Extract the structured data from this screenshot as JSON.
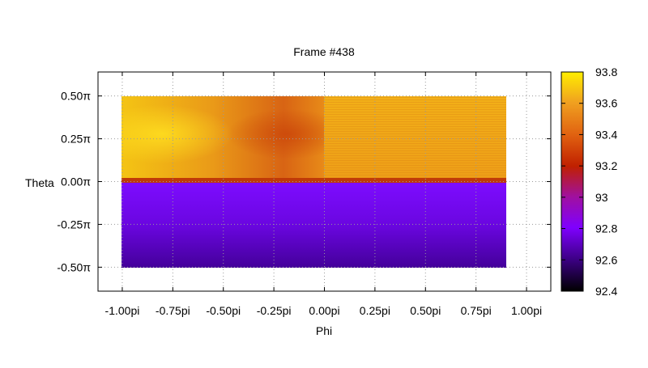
{
  "chart_data": {
    "type": "heatmap",
    "title": "Frame #438",
    "xlabel": "Phi",
    "ylabel": "Theta",
    "x_ticks": [
      "-1.00pi",
      "-0.75pi",
      "-0.50pi",
      "-0.25pi",
      "0.00pi",
      "0.25pi",
      "0.50pi",
      "0.75pi",
      "1.00pi"
    ],
    "x_tick_values": [
      -1.0,
      -0.75,
      -0.5,
      -0.25,
      0.0,
      0.25,
      0.5,
      0.75,
      1.0
    ],
    "y_ticks": [
      "0.50π",
      "0.25π",
      "0.00π",
      "-0.25π",
      "-0.50π"
    ],
    "y_tick_values": [
      0.5,
      0.25,
      0.0,
      -0.25,
      -0.5
    ],
    "xlim": [
      -1.12,
      1.12
    ],
    "ylim": [
      -0.64,
      0.64
    ],
    "grid": true,
    "data_extent": {
      "x": [
        -1.0,
        0.9
      ],
      "y": [
        -0.5,
        0.5
      ]
    },
    "colorbar": {
      "range": [
        92.4,
        93.8
      ],
      "ticks": [
        "93.8",
        "93.6",
        "93.4",
        "93.2",
        "93",
        "92.8",
        "92.6",
        "92.4"
      ],
      "tick_values": [
        93.8,
        93.6,
        93.4,
        93.2,
        93.0,
        92.8,
        92.6,
        92.4
      ],
      "palette": "black-purple-red-orange-yellow"
    },
    "regions": [
      {
        "phi": [
          -1.0,
          0.0
        ],
        "theta": [
          0.0,
          0.5
        ],
        "value_range": [
          93.4,
          93.7
        ],
        "note": "peak near phi -0.85pi, theta 0.3pi; lower near phi -0.1pi"
      },
      {
        "phi": [
          0.0,
          0.9
        ],
        "theta": [
          0.0,
          0.5
        ],
        "value_range": [
          93.5,
          93.6
        ]
      },
      {
        "phi": [
          -1.0,
          0.9
        ],
        "theta": [
          -0.5,
          0.0
        ],
        "value_range": [
          92.6,
          92.85
        ],
        "note": "decreasing toward theta -0.5pi"
      },
      {
        "phi": [
          -1.0,
          0.9
        ],
        "theta": [
          -0.01,
          0.02
        ],
        "value_range": [
          93.2,
          93.3
        ],
        "note": "boundary band"
      }
    ]
  }
}
